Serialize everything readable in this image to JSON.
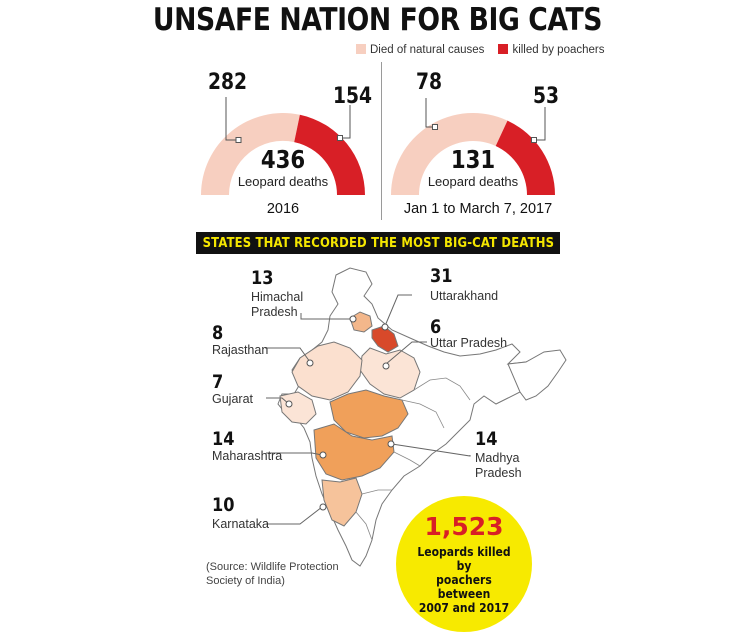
{
  "title": "UNSAFE NATION FOR BIG CATS",
  "legend": {
    "natural_label": "Died of natural causes",
    "poached_label": "killed by poachers",
    "colors": {
      "natural": "#f7cfc0",
      "poached": "#d81f26"
    }
  },
  "gauges": [
    {
      "natural": "282",
      "poached": "154",
      "total": "436",
      "total_label": "Leopard deaths",
      "period": "2016"
    },
    {
      "natural": "78",
      "poached": "53",
      "total": "131",
      "total_label": "Leopard deaths",
      "period": "Jan 1 to March 7, 2017"
    }
  ],
  "banner": "STATES THAT RECORDED THE MOST BIG-CAT DEATHS",
  "states": [
    {
      "count": "13",
      "name_line1": "Himachal",
      "name_line2": "Pradesh"
    },
    {
      "count": "31",
      "name_line1": "Uttarakhand",
      "name_line2": ""
    },
    {
      "count": "8",
      "name_line1": "Rajasthan",
      "name_line2": ""
    },
    {
      "count": "6",
      "name_line1": "Uttar Pradesh",
      "name_line2": ""
    },
    {
      "count": "7",
      "name_line1": "Gujarat",
      "name_line2": ""
    },
    {
      "count": "14",
      "name_line1": "Maharashtra",
      "name_line2": ""
    },
    {
      "count": "14",
      "name_line1": "Madhya",
      "name_line2": "Pradesh"
    },
    {
      "count": "10",
      "name_line1": "Karnataka",
      "name_line2": ""
    }
  ],
  "source_line1": "(Source: Wildlife Protection",
  "source_line2": "Society of India)",
  "highlight": {
    "number": "1,523",
    "text_line1": "Leopards killed by",
    "text_line2": "poachers between",
    "text_line3": "2007 and 2017"
  }
}
